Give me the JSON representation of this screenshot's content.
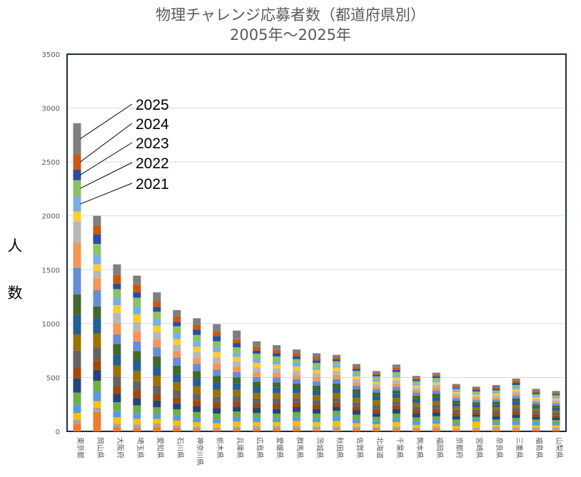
{
  "chart_data": {
    "type": "bar",
    "stacked": true,
    "title": "物理チャレンジ応募者数（都道府県別）",
    "subtitle": "2005年〜2025年",
    "ylabel": "人　数",
    "xlabel": "",
    "ylim": [
      0,
      3500
    ],
    "yticks": [
      0,
      500,
      1000,
      1500,
      2000,
      2500,
      3000,
      3500
    ],
    "grid": true,
    "legend": "left inside, callouts pointing to top segments of first bar",
    "legend_labels": [
      "2025",
      "2024",
      "2023",
      "2022",
      "2021"
    ],
    "categories": [
      "東京都",
      "岡山県",
      "大阪府",
      "埼玉県",
      "愛知県",
      "石川県",
      "神奈川県",
      "栃木県",
      "兵庫県",
      "広島県",
      "愛媛県",
      "群馬県",
      "茨城県",
      "秋田県",
      "佐賀県",
      "北海道",
      "千葉県",
      "熊本県",
      "福岡県",
      "京都府",
      "宮崎県",
      "奈良県",
      "三重県",
      "福島県",
      "山梨県"
    ],
    "series_colors": [
      "#ed7d31",
      "#a5a5a5",
      "#ffc000",
      "#5b9bd5",
      "#70ad47",
      "#264478",
      "#9e480e",
      "#636363",
      "#997300",
      "#255e91",
      "#43682b",
      "#698ed0",
      "#f1975a",
      "#b7b7b7",
      "#ffcd33",
      "#7cafdd",
      "#8cc168",
      "#2e4e9c",
      "#c55a11",
      "#7f7f7f"
    ],
    "series": [
      {
        "values": [
          70,
          180,
          40,
          30,
          45,
          30,
          20,
          15,
          20,
          20,
          25,
          20,
          15,
          10,
          20,
          20,
          20,
          15,
          25,
          10,
          15,
          15,
          15,
          15,
          15
        ]
      },
      {
        "values": [
          40,
          40,
          30,
          35,
          30,
          25,
          25,
          20,
          25,
          30,
          25,
          30,
          30,
          35,
          25,
          20,
          25,
          20,
          20,
          15,
          20,
          25,
          20,
          20,
          20
        ]
      },
      {
        "values": [
          60,
          60,
          60,
          50,
          40,
          45,
          40,
          40,
          45,
          35,
          35,
          45,
          40,
          50,
          30,
          25,
          40,
          25,
          25,
          25,
          55,
          20,
          25,
          20,
          20
        ]
      },
      {
        "values": [
          80,
          90,
          60,
          55,
          50,
          50,
          40,
          40,
          45,
          40,
          35,
          40,
          35,
          50,
          40,
          35,
          40,
          35,
          35,
          30,
          25,
          25,
          35,
          30,
          25
        ]
      },
      {
        "values": [
          110,
          100,
          80,
          70,
          60,
          55,
          55,
          50,
          50,
          45,
          45,
          45,
          45,
          45,
          40,
          35,
          40,
          35,
          35,
          30,
          20,
          25,
          30,
          25,
          25
        ]
      },
      {
        "values": [
          130,
          100,
          80,
          70,
          60,
          55,
          55,
          50,
          45,
          45,
          45,
          45,
          40,
          40,
          40,
          35,
          40,
          35,
          35,
          30,
          20,
          30,
          30,
          25,
          25
        ]
      },
      {
        "values": [
          110,
          90,
          70,
          70,
          65,
          55,
          55,
          50,
          45,
          40,
          45,
          40,
          40,
          40,
          35,
          40,
          35,
          30,
          35,
          30,
          20,
          25,
          30,
          25,
          20
        ]
      },
      {
        "values": [
          150,
          120,
          90,
          85,
          75,
          65,
          60,
          55,
          55,
          50,
          50,
          45,
          45,
          40,
          40,
          40,
          35,
          35,
          35,
          30,
          25,
          30,
          30,
          25,
          25
        ]
      },
      {
        "values": [
          150,
          130,
          100,
          95,
          90,
          75,
          70,
          65,
          55,
          50,
          50,
          45,
          45,
          45,
          40,
          40,
          35,
          35,
          35,
          30,
          25,
          30,
          30,
          25,
          20
        ]
      },
      {
        "values": [
          180,
          140,
          100,
          95,
          90,
          75,
          70,
          65,
          60,
          55,
          50,
          45,
          45,
          45,
          40,
          35,
          35,
          35,
          35,
          30,
          25,
          25,
          30,
          20,
          25
        ]
      },
      {
        "values": [
          190,
          110,
          100,
          90,
          90,
          80,
          70,
          65,
          55,
          50,
          50,
          45,
          45,
          45,
          40,
          35,
          35,
          30,
          35,
          25,
          20,
          25,
          30,
          20,
          20
        ]
      },
      {
        "values": [
          250,
          150,
          90,
          90,
          85,
          75,
          65,
          60,
          50,
          45,
          45,
          40,
          40,
          40,
          35,
          30,
          35,
          30,
          30,
          25,
          20,
          20,
          25,
          20,
          20
        ]
      },
      {
        "values": [
          230,
          110,
          100,
          90,
          70,
          60,
          55,
          55,
          50,
          45,
          45,
          40,
          40,
          40,
          30,
          25,
          30,
          25,
          30,
          20,
          20,
          20,
          20,
          15,
          15
        ]
      },
      {
        "values": [
          200,
          70,
          100,
          90,
          70,
          60,
          55,
          55,
          50,
          45,
          40,
          40,
          35,
          35,
          30,
          25,
          30,
          20,
          25,
          20,
          15,
          20,
          20,
          15,
          15
        ]
      },
      {
        "values": [
          90,
          60,
          70,
          70,
          60,
          50,
          50,
          50,
          40,
          40,
          35,
          35,
          30,
          30,
          25,
          20,
          25,
          20,
          20,
          15,
          15,
          15,
          20,
          15,
          15
        ]
      },
      {
        "values": [
          140,
          90,
          70,
          75,
          60,
          55,
          50,
          45,
          40,
          40,
          35,
          35,
          30,
          30,
          25,
          25,
          25,
          20,
          20,
          15,
          15,
          15,
          20,
          15,
          15
        ]
      },
      {
        "values": [
          150,
          100,
          80,
          80,
          70,
          65,
          60,
          55,
          50,
          45,
          40,
          35,
          35,
          30,
          25,
          25,
          25,
          20,
          20,
          15,
          15,
          15,
          20,
          15,
          15
        ]
      },
      {
        "values": [
          100,
          90,
          50,
          50,
          45,
          40,
          50,
          50,
          40,
          30,
          30,
          25,
          25,
          20,
          20,
          15,
          20,
          15,
          15,
          10,
          15,
          15,
          20,
          15,
          10
        ]
      },
      {
        "values": [
          140,
          80,
          80,
          75,
          55,
          50,
          45,
          40,
          35,
          35,
          30,
          30,
          25,
          20,
          20,
          15,
          20,
          15,
          15,
          15,
          15,
          15,
          20,
          15,
          15
        ]
      },
      {
        "values": [
          290,
          90,
          100,
          80,
          80,
          60,
          60,
          70,
          80,
          50,
          45,
          35,
          40,
          20,
          25,
          20,
          30,
          20,
          20,
          20,
          15,
          20,
          20,
          20,
          15
        ]
      }
    ]
  }
}
